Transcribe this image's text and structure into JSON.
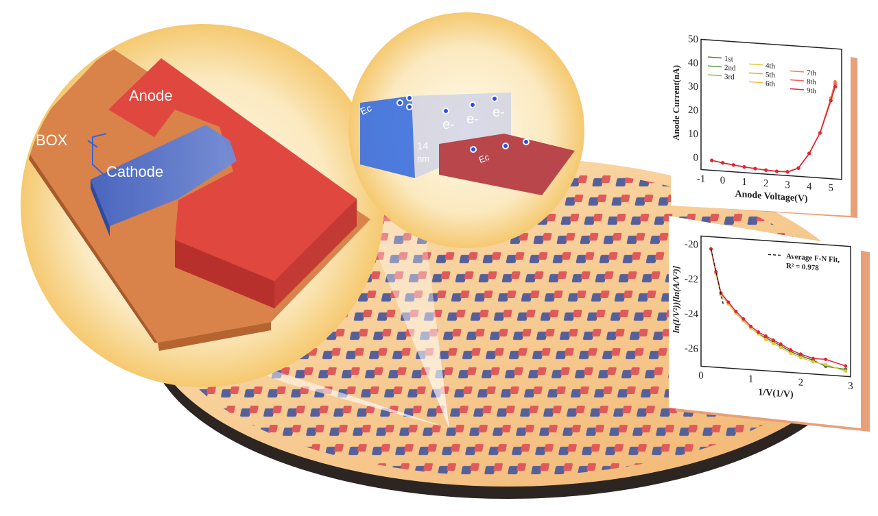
{
  "device": {
    "box_label": "BOX",
    "anode_label": "Anode",
    "cathode_label": "Cathode"
  },
  "band_diagram": {
    "ec_left_label": "Ec",
    "ec_right_label": "Ec",
    "gap_label_value": "14",
    "gap_label_unit": "nm",
    "electron_labels": [
      "e-",
      "e-",
      "e-"
    ]
  },
  "colors": {
    "anode": "#e0473f",
    "cathode": "#4a6fd0",
    "box": "#d9834a",
    "wafer": "#f6c88a",
    "panel_edge": "#e8a079"
  },
  "chart_data": [
    {
      "type": "line",
      "xlabel": "Anode Voltage(V)",
      "ylabel": "Anode Current(nA)",
      "xlim": [
        -1,
        5.5
      ],
      "ylim": [
        -5,
        50
      ],
      "xticks": [
        "-1",
        "0",
        "1",
        "2",
        "3",
        "4",
        "5"
      ],
      "yticks": [
        "0",
        "10",
        "20",
        "30",
        "40",
        "50"
      ],
      "legend_placement": "top-left",
      "x": [
        -0.5,
        0,
        0.5,
        1,
        1.5,
        2,
        2.5,
        3,
        3.5,
        4,
        4.5,
        5,
        5.2
      ],
      "series": [
        {
          "name": "1st",
          "color": "#2e7d32",
          "values": [
            -0.8,
            -1.5,
            -2.1,
            -2.6,
            -3.0,
            -3.3,
            -3.5,
            -3.4,
            -1.5,
            5,
            14,
            28,
            34
          ]
        },
        {
          "name": "2nd",
          "color": "#5a9e3a",
          "values": [
            -0.8,
            -1.5,
            -2.1,
            -2.6,
            -3.0,
            -3.3,
            -3.5,
            -3.4,
            -1.5,
            5,
            14,
            28,
            34
          ]
        },
        {
          "name": "3rd",
          "color": "#a8b83a",
          "values": [
            -0.8,
            -1.5,
            -2.1,
            -2.6,
            -3.0,
            -3.3,
            -3.5,
            -3.4,
            -1.5,
            5,
            14,
            28,
            35
          ]
        },
        {
          "name": "4th",
          "color": "#e6c640",
          "values": [
            -0.8,
            -1.5,
            -2.1,
            -2.6,
            -3.0,
            -3.3,
            -3.5,
            -3.4,
            -1.5,
            5,
            14,
            29,
            36
          ]
        },
        {
          "name": "5th",
          "color": "#f0a830",
          "values": [
            -0.8,
            -1.5,
            -2.1,
            -2.6,
            -3.0,
            -3.3,
            -3.5,
            -3.4,
            -1.5,
            5,
            14,
            29,
            36
          ]
        },
        {
          "name": "6th",
          "color": "#f4b84a",
          "values": [
            -0.8,
            -1.5,
            -2.1,
            -2.6,
            -3.0,
            -3.3,
            -3.5,
            -3.4,
            -1.5,
            5,
            14,
            29,
            36
          ]
        },
        {
          "name": "7th",
          "color": "#f08050",
          "values": [
            -0.8,
            -1.5,
            -2.1,
            -2.6,
            -3.0,
            -3.3,
            -3.5,
            -3.4,
            -1.5,
            5,
            14,
            29,
            36
          ]
        },
        {
          "name": "8th",
          "color": "#f06060",
          "values": [
            -0.8,
            -1.5,
            -2.1,
            -2.6,
            -3.0,
            -3.3,
            -3.5,
            -3.4,
            -1.5,
            5,
            14,
            28,
            35
          ]
        },
        {
          "name": "9th",
          "color": "#e8203a",
          "values": [
            -0.8,
            -1.5,
            -2.1,
            -2.6,
            -3.0,
            -3.3,
            -3.5,
            -3.4,
            -1.5,
            5,
            14,
            28,
            34
          ]
        }
      ]
    },
    {
      "type": "scatter",
      "xlabel": "1/V(1/V)",
      "ylabel": "ln(I/V²))[ln(A/V²)]",
      "xlim": [
        0,
        3
      ],
      "ylim": [
        -27,
        -19.5
      ],
      "xticks": [
        "0",
        "1",
        "2",
        "3"
      ],
      "yticks": [
        "-20",
        "-22",
        "-24",
        "-26"
      ],
      "legend_placement": "top-right",
      "legend_entry": "Average F-N Fit,",
      "annotation": "R² = 0.978",
      "x": [
        0.2,
        0.3,
        0.4,
        0.55,
        0.7,
        0.85,
        1.0,
        1.15,
        1.3,
        1.45,
        1.6,
        1.8,
        2.0,
        2.25,
        2.5,
        2.9
      ],
      "series": [
        {
          "color": "#2e7d32",
          "values": [
            -20.2,
            -21.6,
            -22.8,
            -23.3,
            -23.8,
            -24.2,
            -24.6,
            -24.9,
            -25.1,
            -25.3,
            -25.5,
            -25.8,
            -26.0,
            -26.2,
            -26.5,
            -26.6
          ]
        },
        {
          "color": "#e6c640",
          "values": [
            -20.2,
            -21.6,
            -22.8,
            -23.3,
            -23.8,
            -24.2,
            -24.6,
            -24.9,
            -25.2,
            -25.4,
            -25.6,
            -25.9,
            -26.1,
            -26.3,
            -26.4,
            -26.7
          ]
        },
        {
          "color": "#e8203a",
          "values": [
            -20.2,
            -21.5,
            -22.7,
            -23.2,
            -23.7,
            -24.1,
            -24.5,
            -24.8,
            -25.0,
            -25.2,
            -25.4,
            -25.7,
            -25.9,
            -26.1,
            -26.1,
            -26.4
          ]
        }
      ],
      "fit_line": {
        "x": [
          0.2,
          0.45
        ],
        "values": [
          -20.2,
          -23.4
        ]
      }
    }
  ]
}
